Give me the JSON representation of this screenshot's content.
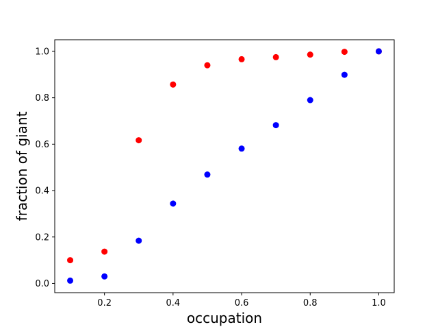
{
  "chart_data": {
    "type": "scatter",
    "title": "",
    "xlabel": "occupation",
    "ylabel": "fraction of giant",
    "xlim": [
      0.055,
      1.045
    ],
    "ylim": [
      -0.04,
      1.05
    ],
    "xticks": [
      0.2,
      0.4,
      0.6,
      0.8,
      1.0
    ],
    "xtick_labels": [
      "0.2",
      "0.4",
      "0.6",
      "0.8",
      "1.0"
    ],
    "yticks": [
      0.0,
      0.2,
      0.4,
      0.6,
      0.8,
      1.0
    ],
    "ytick_labels": [
      "0.0",
      "0.2",
      "0.4",
      "0.6",
      "0.8",
      "1.0"
    ],
    "grid": false,
    "legend": null,
    "series": [
      {
        "color": "#ff0000",
        "x": [
          0.1,
          0.2,
          0.3,
          0.4,
          0.5,
          0.6,
          0.7,
          0.8,
          0.9,
          1.0
        ],
        "y": [
          0.1,
          0.137,
          0.617,
          0.857,
          0.94,
          0.966,
          0.975,
          0.986,
          0.998,
          1.0
        ]
      },
      {
        "color": "#0000ff",
        "x": [
          0.1,
          0.2,
          0.3,
          0.4,
          0.5,
          0.6,
          0.7,
          0.8,
          0.9,
          1.0
        ],
        "y": [
          0.012,
          0.03,
          0.184,
          0.344,
          0.469,
          0.581,
          0.682,
          0.79,
          0.899,
          1.0
        ]
      }
    ]
  }
}
